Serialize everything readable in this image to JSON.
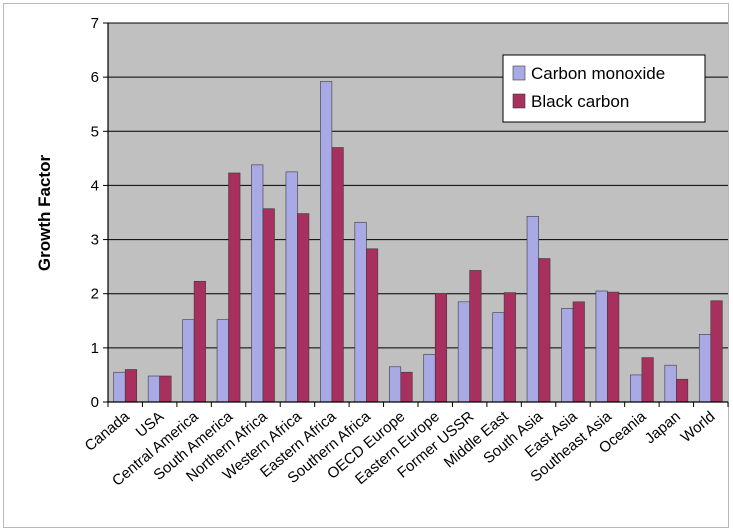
{
  "chart_data": {
    "type": "bar",
    "title": "",
    "xlabel": "",
    "ylabel": "Growth Factor",
    "ylim": [
      0,
      7
    ],
    "yticks": [
      0,
      1,
      2,
      3,
      4,
      5,
      6,
      7
    ],
    "grid": true,
    "legend_position": "top-right",
    "categories": [
      "Canada",
      "USA",
      "Central America",
      "South America",
      "Northern Africa",
      "Western Africa",
      "Eastern Africa",
      "Southern Africa",
      "OECD Europe",
      "Eastern Europe",
      "Former USSR",
      "Middle East",
      "South Asia",
      "East Asia",
      "Southeast Asia",
      "Oceania",
      "Japan",
      "World"
    ],
    "series": [
      {
        "name": "Carbon monoxide",
        "color": "#a9a9e6",
        "values": [
          0.55,
          0.48,
          1.52,
          1.52,
          4.38,
          4.25,
          5.92,
          3.32,
          0.65,
          0.88,
          1.85,
          1.65,
          3.43,
          1.73,
          2.05,
          0.5,
          0.68,
          1.25
        ]
      },
      {
        "name": "Black carbon",
        "color": "#a8305e",
        "values": [
          0.6,
          0.48,
          2.23,
          4.23,
          3.57,
          3.48,
          4.7,
          2.83,
          0.55,
          2.0,
          2.43,
          2.02,
          2.65,
          1.85,
          2.03,
          0.82,
          0.42,
          1.87
        ]
      }
    ],
    "plot_background": "#c0c0c0",
    "gridline_color": "#000000"
  }
}
